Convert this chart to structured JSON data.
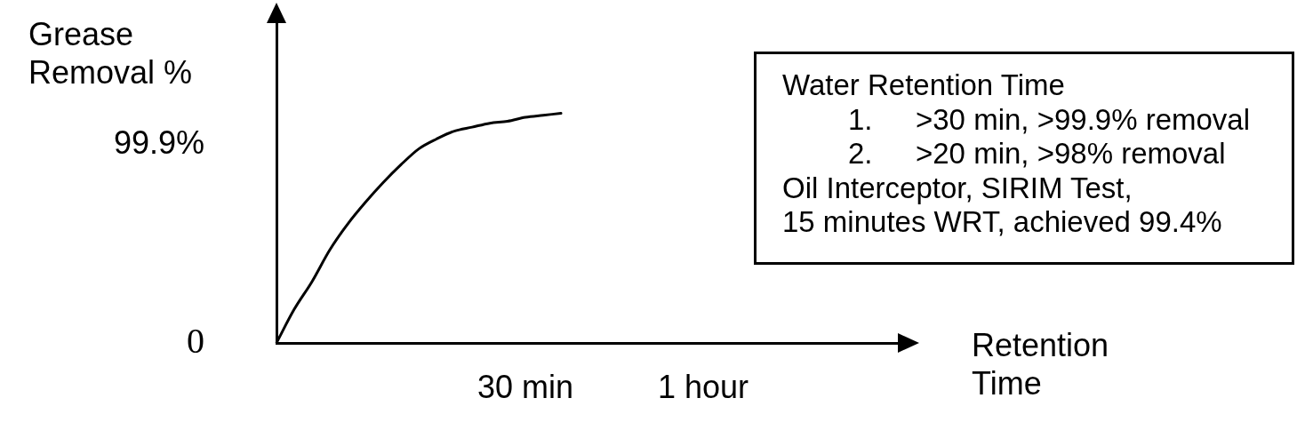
{
  "chart_data": {
    "type": "line",
    "xlabel": "Retention Time",
    "ylabel": "Grease Removal %",
    "annotations": [
      "Water Retention Time",
      "1.\t>30 min, >99.9% removal",
      "2.\t>20 min, >98% removal",
      "Oil Interceptor, SIRIM Test,",
      "15 minutes WRT, achieved 99.4%"
    ],
    "categories": [
      null,
      null,
      null,
      null,
      null,
      null,
      null,
      null,
      null,
      null,
      null,
      null,
      null,
      null,
      "30 min",
      null,
      null,
      null,
      null,
      null,
      null,
      null,
      null,
      null,
      "1 hour",
      null,
      null,
      null,
      null,
      null,
      null,
      null,
      null,
      null,
      null,
      null
    ],
    "values": [
      0,
      17,
      31,
      47,
      60,
      71,
      81,
      90,
      98,
      103,
      107,
      109,
      111,
      112,
      114,
      115,
      116,
      null,
      null,
      null,
      null,
      null,
      null,
      null,
      null,
      null,
      null,
      null,
      null,
      null,
      null,
      null,
      null,
      null,
      null,
      null
    ],
    "color": "#000000",
    "ylim": [
      0,
      162
    ],
    "yticks": [
      {
        "value": 0,
        "label": "0"
      },
      {
        "value": 99.9,
        "label": "99.9%"
      }
    ],
    "marker": "none",
    "line_style": "solid"
  }
}
